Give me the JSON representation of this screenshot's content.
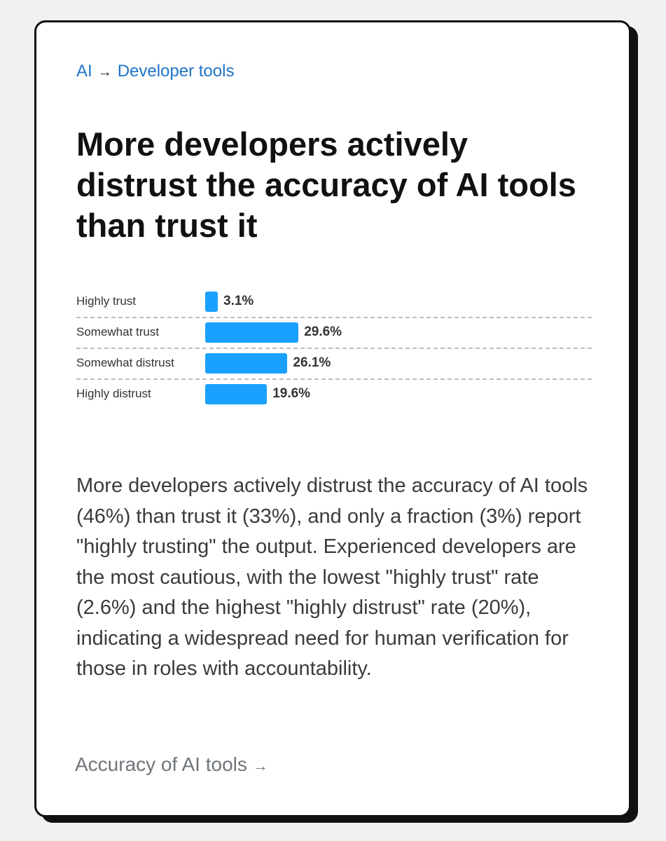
{
  "breadcrumb": {
    "root": "AI",
    "separator": "→",
    "current": "Developer tools"
  },
  "title": "More developers actively distrust the accuracy of AI tools than trust it",
  "chart_data": {
    "type": "bar",
    "orientation": "horizontal",
    "title": "",
    "xlabel": "",
    "ylabel": "",
    "categories": [
      "Highly trust",
      "Somewhat trust",
      "Somewhat distrust",
      "Highly distrust"
    ],
    "values": [
      3.1,
      29.6,
      26.1,
      19.6
    ],
    "value_labels": [
      "3.1%",
      "29.6%",
      "26.1%",
      "19.6%"
    ],
    "xlim": [
      0,
      100
    ],
    "grid": false,
    "legend": "none",
    "bar_color": "#1aa1ff"
  },
  "description": "More developers actively distrust the accuracy of AI tools (46%) than trust it (33%), and only a fraction (3%) report \"highly trusting\" the output. Experienced developers are the most cautious, with the lowest \"highly trust\" rate (2.6%) and the highest \"highly distrust\" rate (20%), indicating a widespread need for human verification for those in roles with accountability.",
  "footer": {
    "link_label": "Accuracy of AI tools",
    "arrow": "→"
  },
  "colors": {
    "accent": "#1f74c9",
    "bar": "#1aa1ff"
  }
}
